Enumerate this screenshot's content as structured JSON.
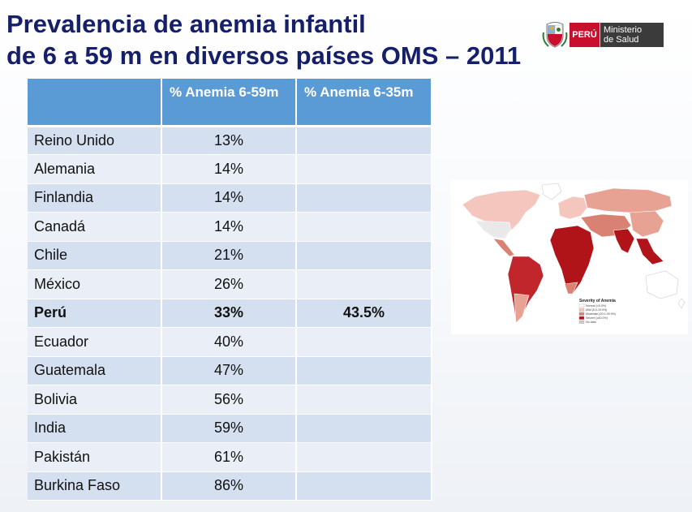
{
  "title": {
    "line1": "Prevalencia de anemia infantil",
    "line2": "de 6 a 59 m en diversos países  OMS – 2011"
  },
  "logo": {
    "country": "PERÚ",
    "ministry_line1": "Ministerio",
    "ministry_line2": "de Salud",
    "colors": {
      "red": "#c8102e",
      "dark": "#3b3b3b"
    },
    "icon": "peru-coat-of-arms-icon"
  },
  "table": {
    "headers": [
      "",
      "% Anemia 6-59m",
      "% Anemia 6-35m"
    ],
    "rows": [
      {
        "country": "Reino Unido",
        "anemia_6_59": "13%",
        "anemia_6_35": ""
      },
      {
        "country": "Alemania",
        "anemia_6_59": "14%",
        "anemia_6_35": ""
      },
      {
        "country": "Finlandia",
        "anemia_6_59": "14%",
        "anemia_6_35": ""
      },
      {
        "country": "Canadá",
        "anemia_6_59": "14%",
        "anemia_6_35": ""
      },
      {
        "country": "Chile",
        "anemia_6_59": "21%",
        "anemia_6_35": ""
      },
      {
        "country": "México",
        "anemia_6_59": "26%",
        "anemia_6_35": ""
      },
      {
        "country": "Perú",
        "anemia_6_59": "33%",
        "anemia_6_35": "43.5%",
        "bold": true
      },
      {
        "country": "Ecuador",
        "anemia_6_59": "40%",
        "anemia_6_35": ""
      },
      {
        "country": "Guatemala",
        "anemia_6_59": "47%",
        "anemia_6_35": ""
      },
      {
        "country": "Bolivia",
        "anemia_6_59": "56%",
        "anemia_6_35": ""
      },
      {
        "country": "India",
        "anemia_6_59": "59%",
        "anemia_6_35": ""
      },
      {
        "country": "Pakistán",
        "anemia_6_59": "61%",
        "anemia_6_35": ""
      },
      {
        "country": "Burkina Faso",
        "anemia_6_59": "86%",
        "anemia_6_35": ""
      }
    ],
    "colors": {
      "header": "#5b9bd5",
      "row_odd": "#d4dff0",
      "row_even": "#eaeff7"
    }
  },
  "map": {
    "legend_title": "Severity of Anemia",
    "legend": [
      {
        "label": "Normal (<5.0%)",
        "color": "#ffffff"
      },
      {
        "label": "Mild (5.0-19.9%)",
        "color": "#f4c6bd"
      },
      {
        "label": "Moderate (20.0-39.9%)",
        "color": "#d98172"
      },
      {
        "label": "Severe (≥40.0%)",
        "color": "#b01419"
      },
      {
        "label": "No data",
        "color": "#c9c9c9"
      }
    ]
  }
}
